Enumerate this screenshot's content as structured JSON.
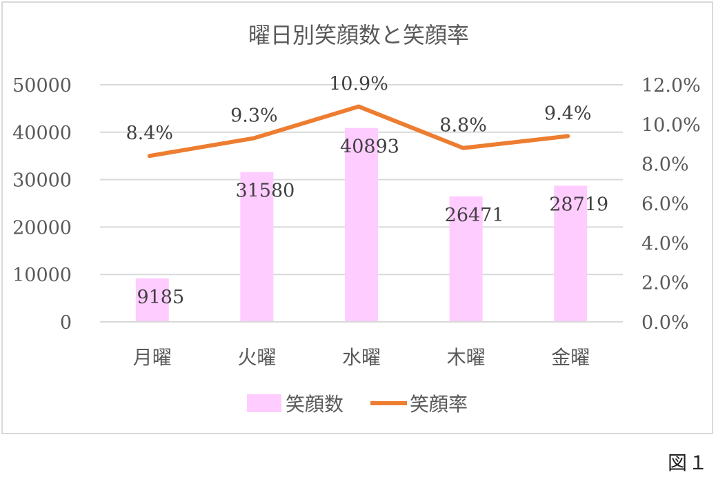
{
  "figure_label": "図１",
  "chart_data": {
    "type": "bar",
    "title": "曜日別笑顔数と笑顔率",
    "categories": [
      "月曜",
      "火曜",
      "水曜",
      "木曜",
      "金曜"
    ],
    "series": [
      {
        "name": "笑顔数",
        "type": "bar",
        "axis": "left",
        "color": "#FFCCFF",
        "values": [
          9185,
          31580,
          40893,
          26471,
          28719
        ],
        "labels": [
          "9185",
          "31580",
          "40893",
          "26471",
          "28719"
        ]
      },
      {
        "name": "笑顔率",
        "type": "line",
        "axis": "right",
        "color": "#ED7D31",
        "values": [
          8.4,
          9.3,
          10.9,
          8.8,
          9.4
        ],
        "labels": [
          "8.4%",
          "9.3%",
          "10.9%",
          "8.8%",
          "9.4%"
        ]
      }
    ],
    "y_left": {
      "min": 0,
      "max": 50000,
      "ticks": [
        "0",
        "10000",
        "20000",
        "30000",
        "40000",
        "50000"
      ]
    },
    "y_right": {
      "min": 0,
      "max": 12,
      "ticks": [
        "0.0%",
        "2.0%",
        "4.0%",
        "6.0%",
        "8.0%",
        "10.0%",
        "12.0%"
      ]
    },
    "grid": true,
    "legend_position": "bottom",
    "gridline_color": "#D9D9D9"
  }
}
